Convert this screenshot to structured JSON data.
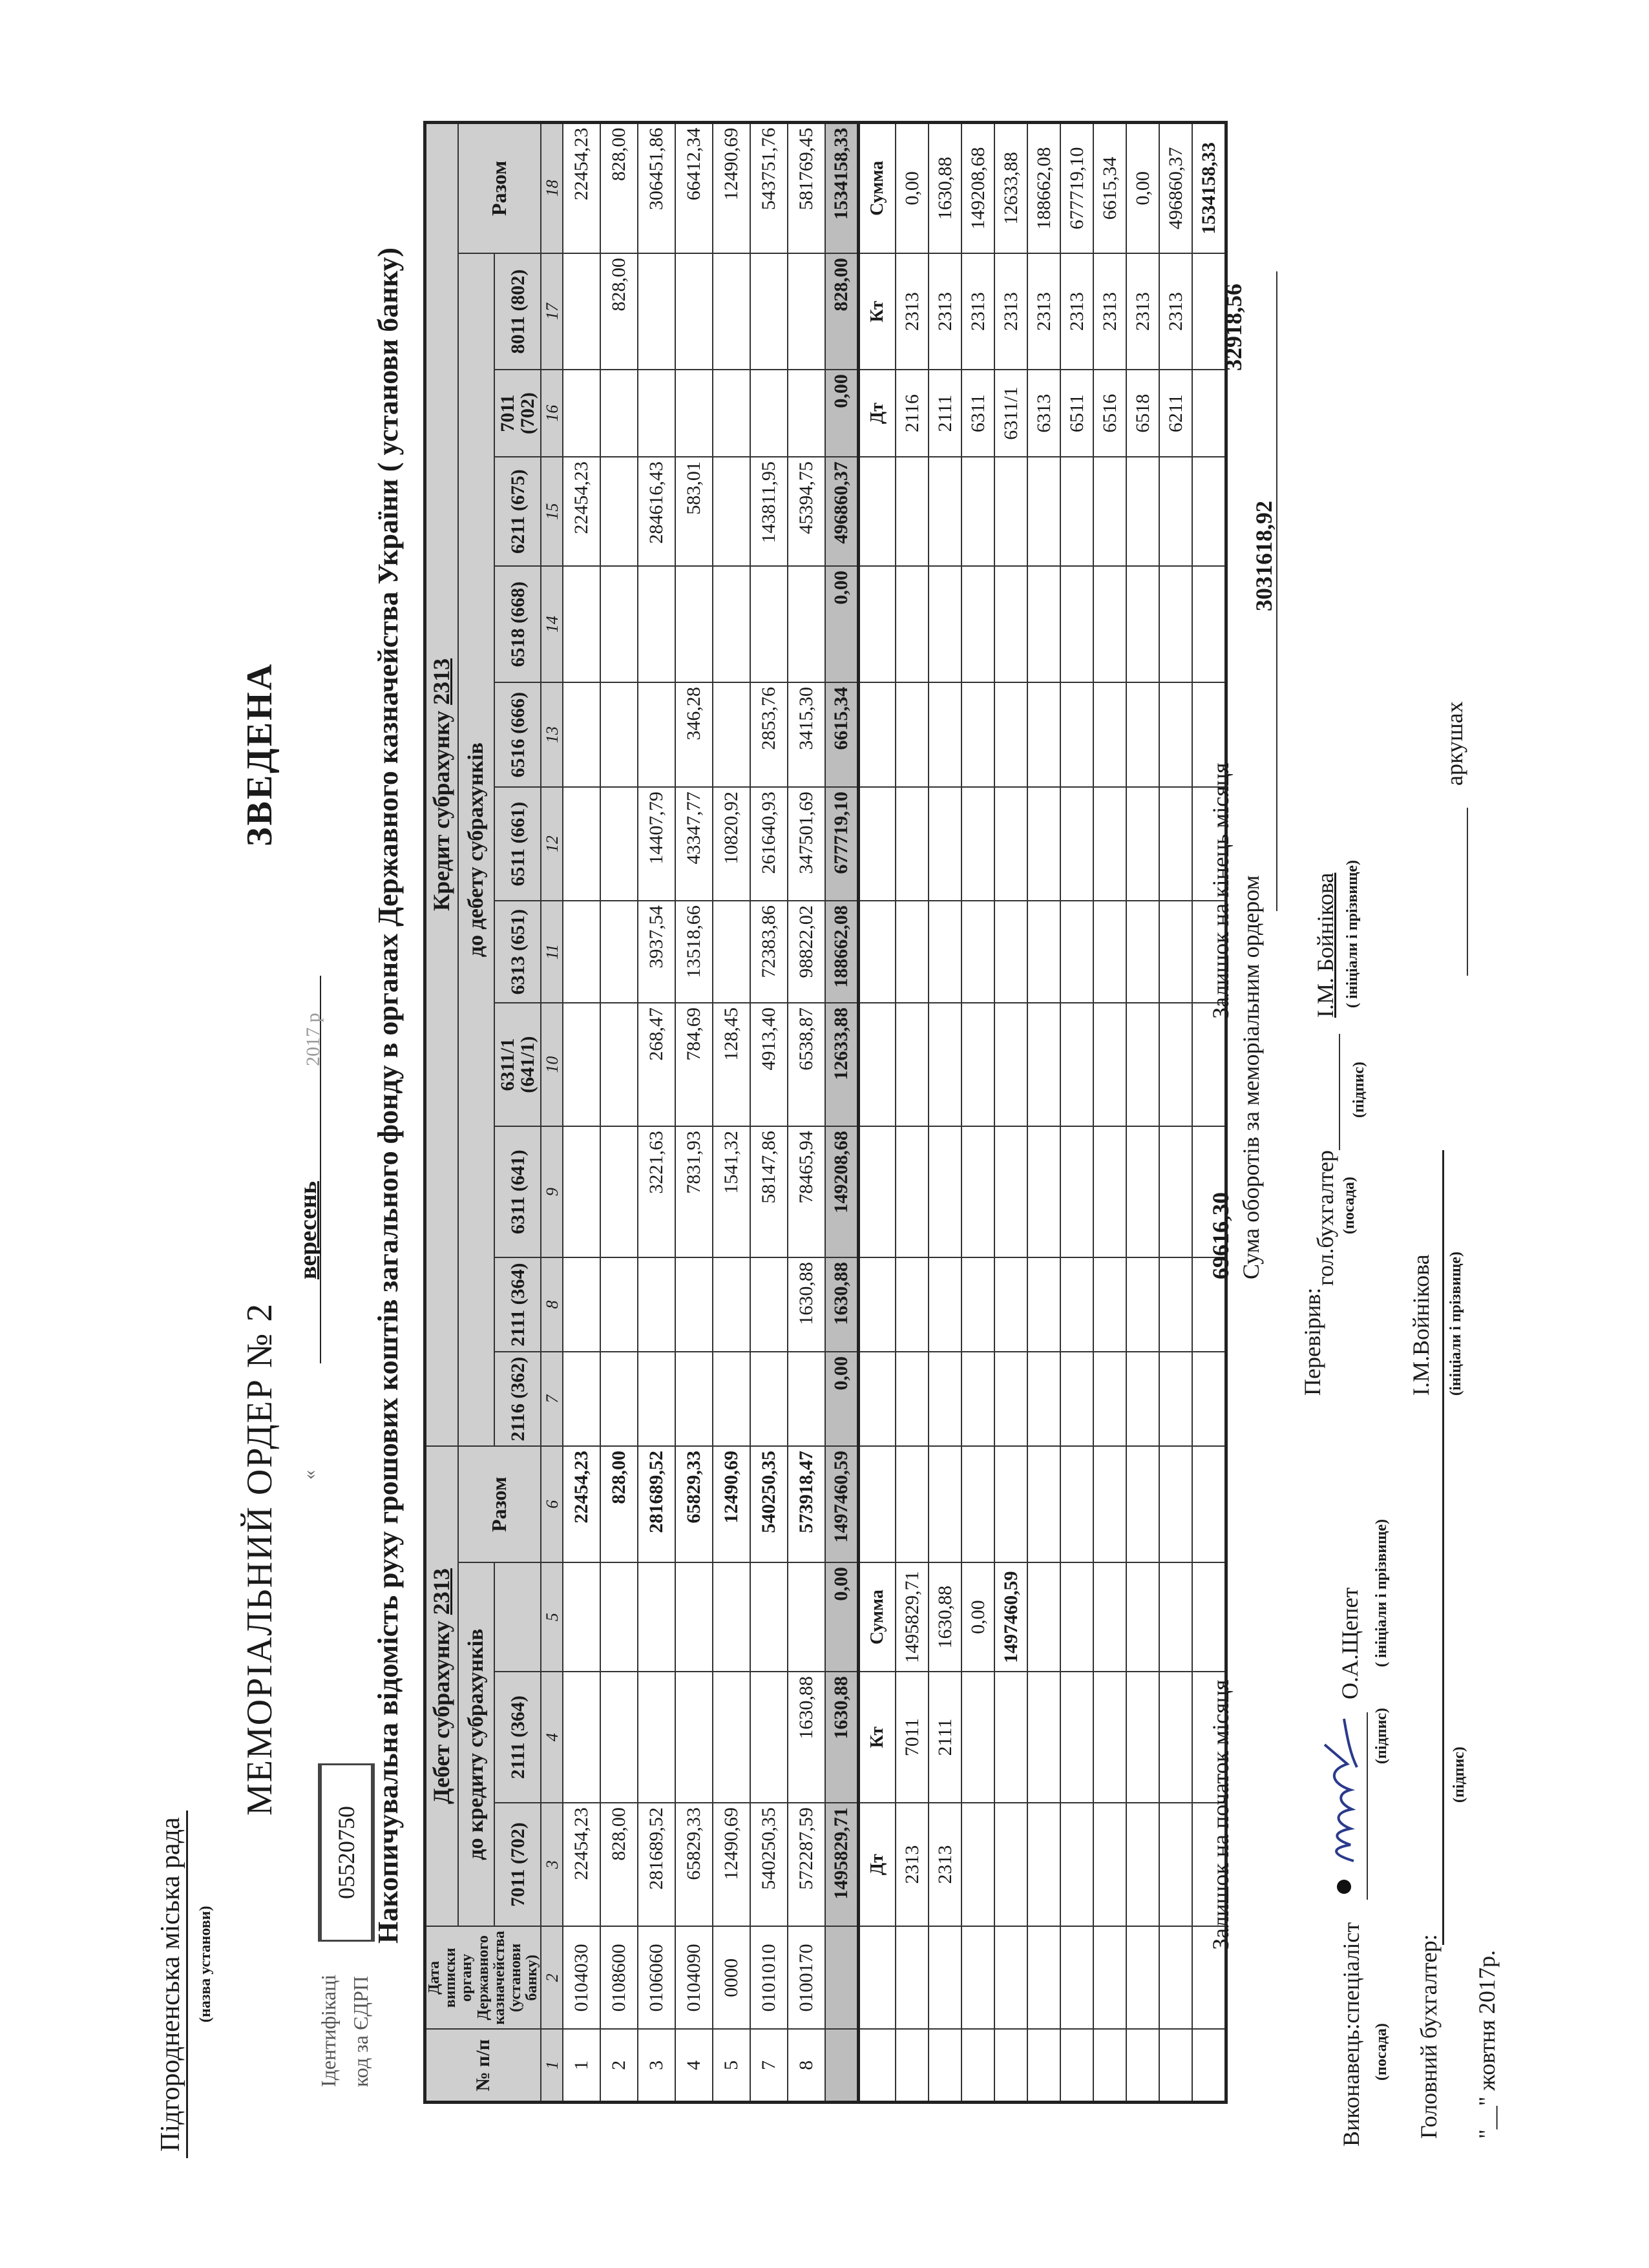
{
  "org": {
    "name": "Підгородненська міська рада",
    "name_caption": "(назва установи)"
  },
  "id_code": {
    "label_1": "Ідентифікаці",
    "label_2": "код за ЄДРП",
    "value": "05520750"
  },
  "title": "МЕМОРІАЛЬНИЙ ОРДЕР № 2",
  "stamp": "ЗВЕДЕНА",
  "period": {
    "quote": "«",
    "month": "вересень",
    "year": "2017 р"
  },
  "subtitle": "Накопичувальна відомість руху грошових коштів загального фонду в органах Державного казначейства України ( установи банку)",
  "table": {
    "header": {
      "no": "№ п/п",
      "date_col": "Дата виписки органу Державного казначейства (установи банку)",
      "debit_title": "Дебет субрахунку",
      "debit_account": "2313",
      "credit_title": "Кредит субрахунку",
      "credit_account": "2313",
      "to_credit": "до кредиту субрахунків",
      "to_debit": "до дебету субрахунків",
      "debit_codes": [
        "7011 (702)",
        "2111 (364)",
        ""
      ],
      "debit_total": "Разом",
      "credit_codes": [
        "2116 (362)",
        "2111 (364)",
        "6311 (641)",
        "6311/1 (641/1)",
        "6313 (651)",
        "6511 (661)",
        "6516 (666)",
        "6518 (668)",
        "6211 (675)",
        "7011 (702)",
        "8011 (802)"
      ],
      "credit_total": "Разом",
      "col_numbers": [
        "1",
        "2",
        "3",
        "4",
        "5",
        "6",
        "7",
        "8",
        "9",
        "10",
        "11",
        "12",
        "13",
        "14",
        "15",
        "16",
        "17",
        "18"
      ]
    },
    "rows": [
      {
        "n": "1",
        "code": "0104030",
        "cells": [
          "22454,23",
          "",
          "",
          "22454,23",
          "",
          "",
          "",
          "",
          "",
          "",
          "",
          "",
          "22454,23",
          "",
          "",
          "22454,23"
        ]
      },
      {
        "n": "2",
        "code": "0108600",
        "cells": [
          "828,00",
          "",
          "",
          "828,00",
          "",
          "",
          "",
          "",
          "",
          "",
          "",
          "",
          "",
          "",
          "828,00",
          "828,00"
        ]
      },
      {
        "n": "3",
        "code": "0106060",
        "cells": [
          "281689,52",
          "",
          "",
          "281689,52",
          "",
          "",
          "3221,63",
          "268,47",
          "3937,54",
          "14407,79",
          "",
          "",
          "284616,43",
          "",
          "",
          "306451,86"
        ]
      },
      {
        "n": "4",
        "code": "0104090",
        "cells": [
          "65829,33",
          "",
          "",
          "65829,33",
          "",
          "",
          "7831,93",
          "784,69",
          "13518,66",
          "43347,77",
          "346,28",
          "",
          "583,01",
          "",
          "",
          "66412,34"
        ]
      },
      {
        "n": "5",
        "code": "0000",
        "cells": [
          "12490,69",
          "",
          "",
          "12490,69",
          "",
          "",
          "1541,32",
          "128,45",
          "",
          "10820,92",
          "",
          "",
          "",
          "",
          "",
          "12490,69"
        ]
      },
      {
        "n": "7",
        "code": "0101010",
        "cells": [
          "540250,35",
          "",
          "",
          "540250,35",
          "",
          "",
          "58147,86",
          "4913,40",
          "72383,86",
          "261640,93",
          "2853,76",
          "",
          "143811,95",
          "",
          "",
          "543751,76"
        ]
      },
      {
        "n": "8",
        "code": "0100170",
        "cells": [
          "572287,59",
          "1630,88",
          "",
          "573918,47",
          "",
          "1630,88",
          "78465,94",
          "6538,87",
          "98822,02",
          "347501,69",
          "3415,30",
          "",
          "45394,75",
          "",
          "",
          "581769,45"
        ]
      }
    ],
    "totals": [
      "1495829,71",
      "1630,88",
      "0,00",
      "1497460,59",
      "0,00",
      "1630,88",
      "149208,68",
      "12633,88",
      "188662,08",
      "677719,10",
      "6615,34",
      "0,00",
      "496860,37",
      "0,00",
      "828,00",
      "1534158,33"
    ]
  },
  "summary": {
    "headers": [
      "Дт",
      "Кт",
      "Сумма"
    ],
    "left_rows": [
      [
        "2313",
        "7011",
        "1495829,71"
      ],
      [
        "2313",
        "2111",
        "1630,88"
      ],
      [
        "",
        "",
        "0,00"
      ],
      [
        "",
        "",
        "1497460,59"
      ]
    ],
    "right_rows": [
      [
        "2116",
        "2313",
        "0,00"
      ],
      [
        "2111",
        "2313",
        "1630,88"
      ],
      [
        "6311",
        "2313",
        "149208,68"
      ],
      [
        "6311/1",
        "2313",
        "12633,88"
      ],
      [
        "6313",
        "2313",
        "188662,08"
      ],
      [
        "6511",
        "2313",
        "677719,10"
      ],
      [
        "6516",
        "2313",
        "6615,34"
      ],
      [
        "6518",
        "2313",
        "0,00"
      ],
      [
        "6211",
        "2313",
        "496860,37"
      ]
    ],
    "right_total": "1534158,33"
  },
  "balances": {
    "start_label": "Залишок на початок місяця",
    "start_value": "69616,30",
    "turnover_label": "Сума оборотів за меморіальним ордером",
    "turnover_value": "3031618,92",
    "end_label": "Залишок на кінець місяця",
    "end_value": "32918,56"
  },
  "signatures": {
    "executor_label": "Виконавець:спеціаліст",
    "executor_pos_caption": "(посада)",
    "executor_sign_caption": "(підпис)",
    "executor_name": "О.А.Щепет",
    "executor_name_caption": "( ініціали і прізвище)",
    "checked_label": "Перевірив:",
    "checked_position": "гол.бухгалтер",
    "checked_pos_caption": "(посада)",
    "checked_sign_caption": "(підпис)",
    "checked_name": "І.М. Бойнікова",
    "checked_name_caption": "( ініціали і прізвище)",
    "chief_label": "Головний бухгалтер:",
    "chief_sign_caption": "(підпис)",
    "chief_name": "І.М.Войнікова",
    "chief_name_caption": "(ініціали і прізвище)",
    "date": "\"__\" жовтня 2017р.",
    "sheets": "аркушах"
  }
}
